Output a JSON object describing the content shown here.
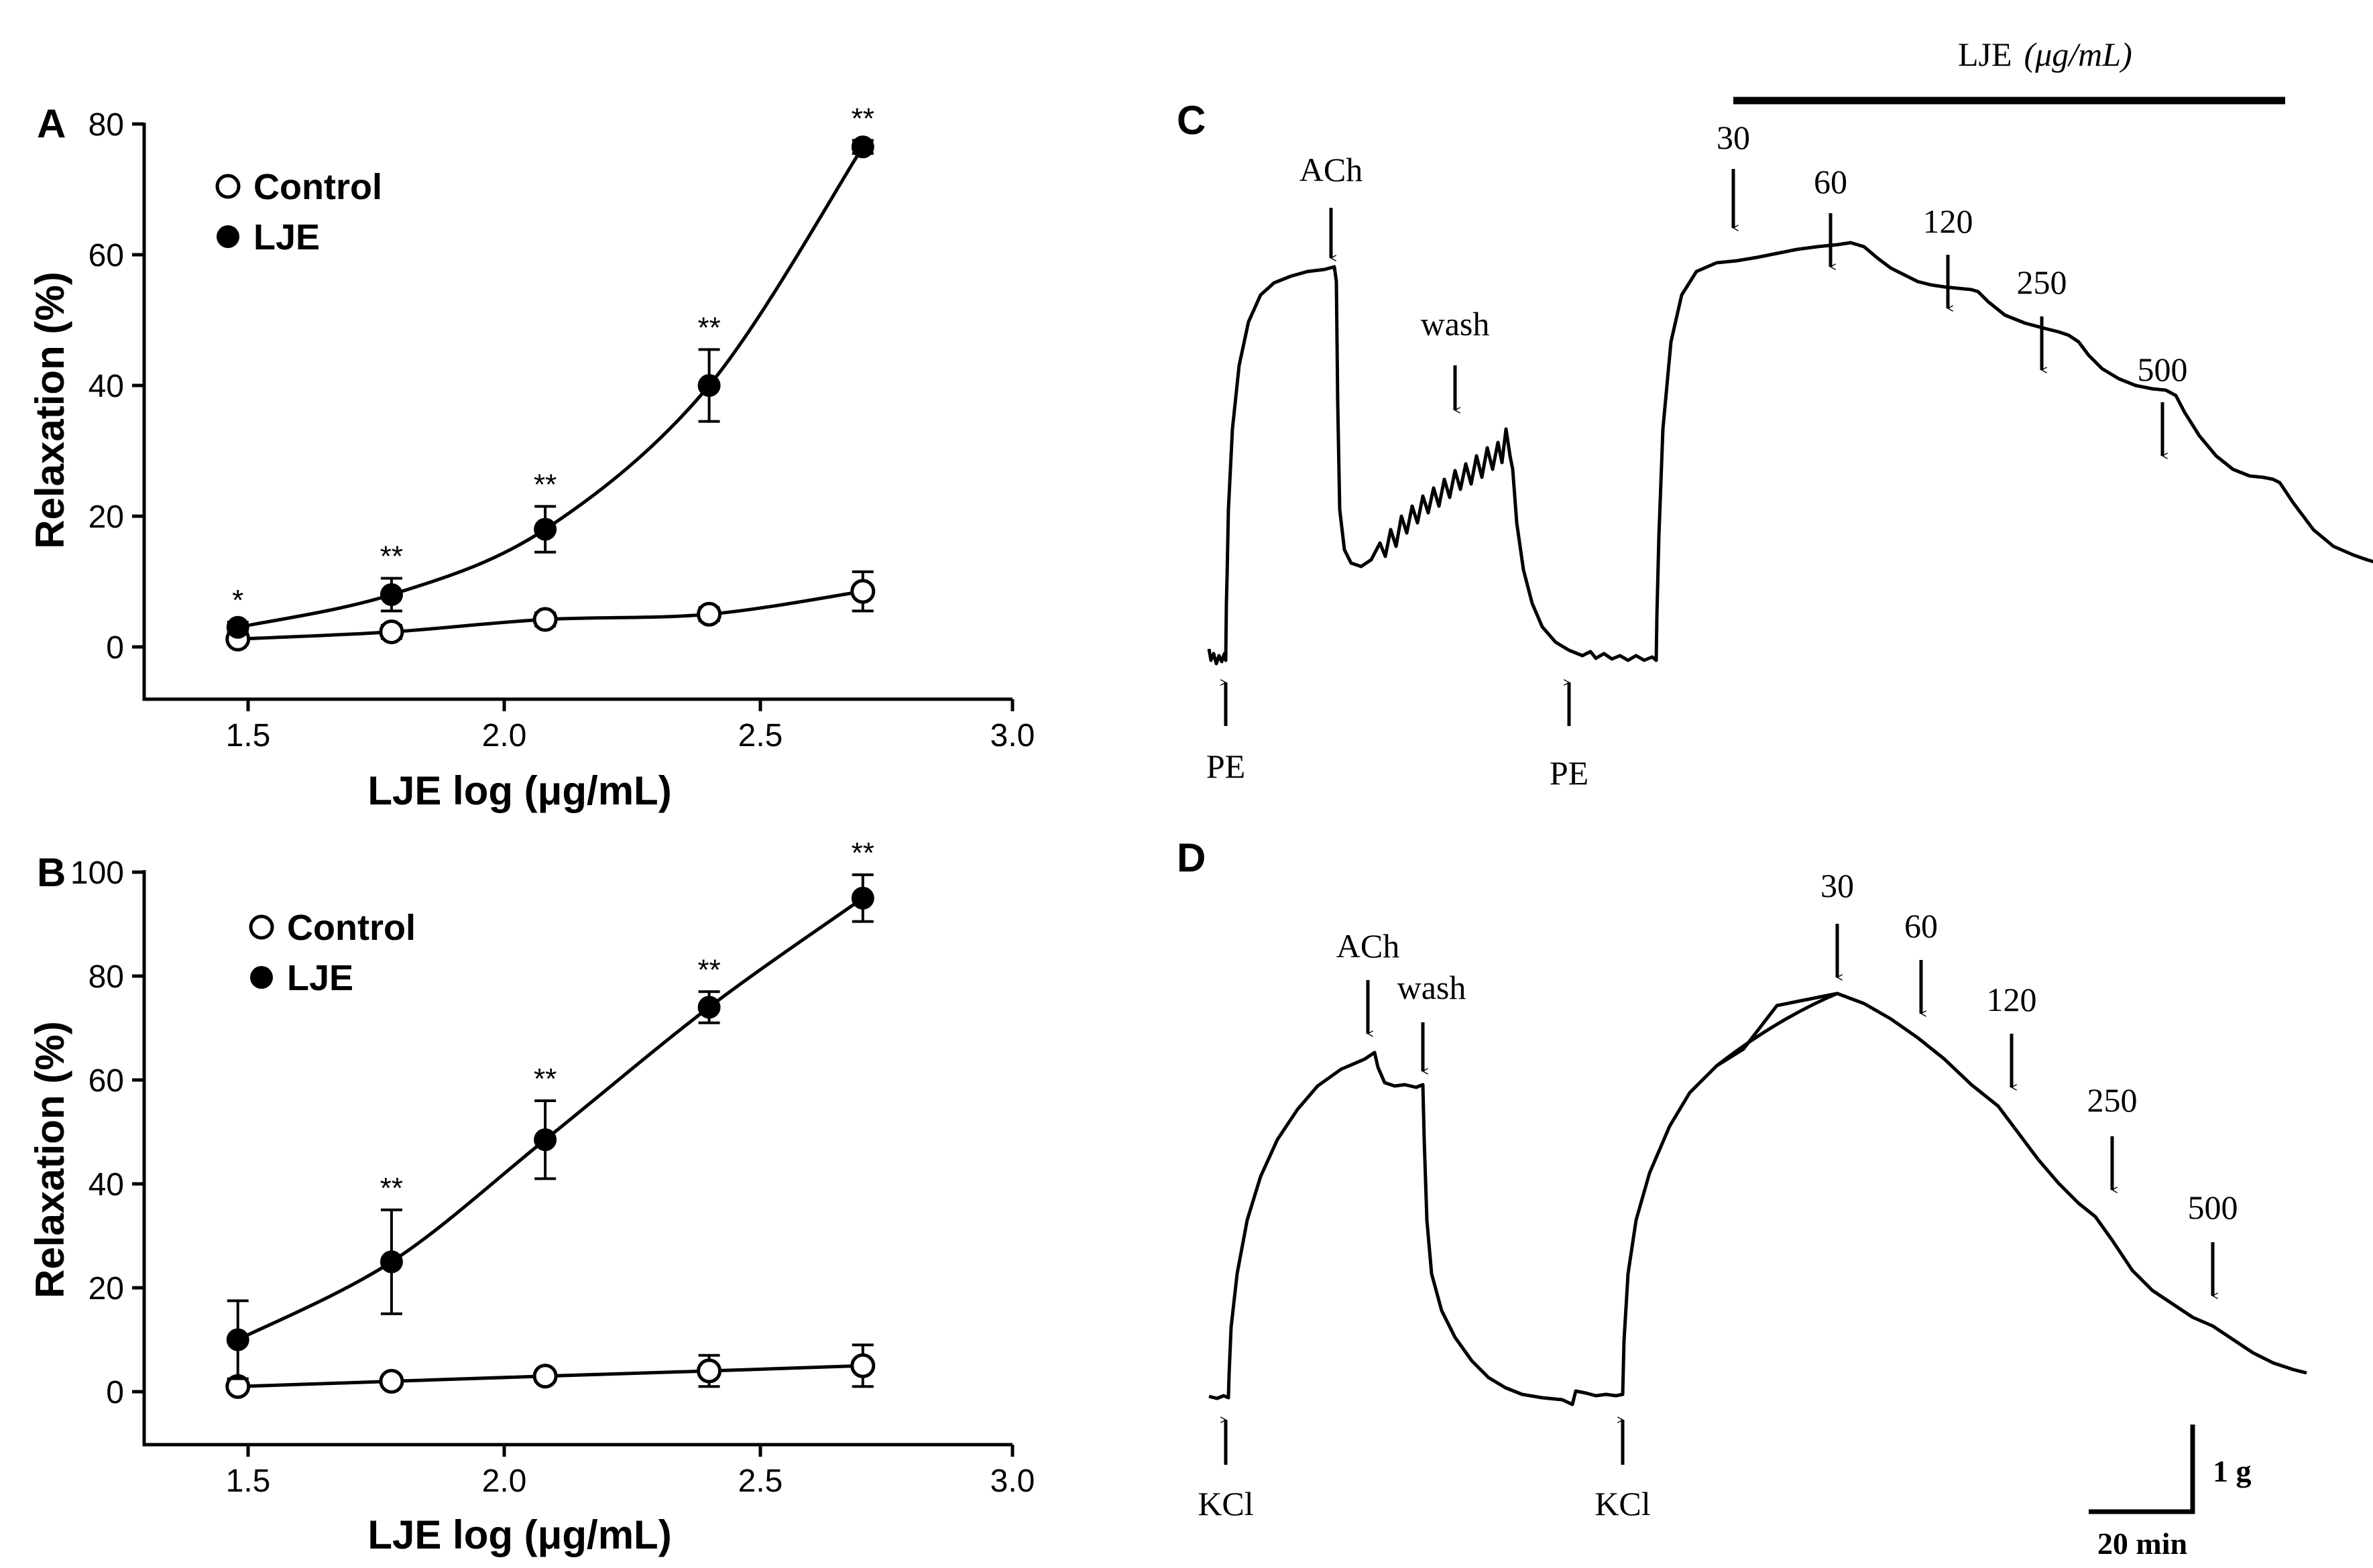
{
  "chart_data": [
    {
      "panel": "A",
      "type": "scatter",
      "xlabel": "LJE log (μg/mL)",
      "ylabel": "Relaxation (%)",
      "xlim": [
        1.3,
        3.0
      ],
      "ylim": [
        -8,
        80
      ],
      "xticks": [
        "1.5",
        "2.0",
        "2.5",
        "3.0"
      ],
      "yticks": [
        "0",
        "20",
        "40",
        "60",
        "80"
      ],
      "legend": {
        "placement": "top-left",
        "control": "Control",
        "lje": "LJE"
      },
      "series": [
        {
          "name": "Control",
          "marker": "open-circle",
          "x": [
            1.48,
            1.78,
            2.08,
            2.4,
            2.7
          ],
          "y": [
            1.2,
            2.3,
            4.2,
            5.0,
            8.5
          ],
          "err": [
            0.8,
            1.0,
            1.0,
            1.0,
            3.0
          ],
          "labels": [
            "",
            "",
            "",
            "",
            ""
          ]
        },
        {
          "name": "LJE",
          "marker": "filled-circle",
          "x": [
            1.48,
            1.78,
            2.08,
            2.4,
            2.7
          ],
          "y": [
            3.0,
            8.0,
            18.0,
            40.0,
            76.5
          ],
          "err": [
            0.8,
            2.5,
            3.5,
            5.5,
            1.0
          ],
          "labels": [
            "*",
            "**",
            "**",
            "**",
            "**"
          ]
        }
      ]
    },
    {
      "panel": "B",
      "type": "scatter",
      "xlabel": "LJE log (μg/mL)",
      "ylabel": "Relaxation (%)",
      "xlim": [
        1.3,
        3.0
      ],
      "ylim": [
        -10,
        100
      ],
      "xticks": [
        "1.5",
        "2.0",
        "2.5",
        "3.0"
      ],
      "yticks": [
        "0",
        "20",
        "40",
        "60",
        "80",
        "100"
      ],
      "legend": {
        "placement": "top-left",
        "control": "Control",
        "lje": "LJE"
      },
      "series": [
        {
          "name": "Control",
          "marker": "open-circle",
          "x": [
            1.48,
            1.78,
            2.08,
            2.4,
            2.7
          ],
          "y": [
            1.0,
            2.0,
            3.0,
            4.0,
            5.0
          ],
          "err": [
            1.0,
            1.0,
            1.0,
            3.0,
            4.0
          ],
          "labels": [
            "",
            "",
            "",
            "",
            ""
          ]
        },
        {
          "name": "LJE",
          "marker": "filled-circle",
          "x": [
            1.48,
            1.78,
            2.08,
            2.4,
            2.7
          ],
          "y": [
            10.0,
            25.0,
            48.5,
            74.0,
            95.0
          ],
          "err": [
            7.5,
            10.0,
            7.5,
            3.0,
            4.5
          ],
          "labels": [
            "",
            "**",
            "**",
            "**",
            "**"
          ]
        }
      ]
    }
  ],
  "traces": {
    "C": {
      "panel": "C",
      "bar_label": "LJE",
      "bar_unit": "(μg/mL)",
      "markers": {
        "pe1": "PE",
        "ach": "ACh",
        "wash": "wash",
        "pe2": "PE",
        "d30": "30",
        "d60": "60",
        "d120": "120",
        "d250": "250",
        "d500": "500"
      }
    },
    "D": {
      "panel": "D",
      "markers": {
        "kcl1": "KCl",
        "ach": "ACh",
        "wash": "wash",
        "kcl2": "KCl",
        "d30": "30",
        "d60": "60",
        "d120": "120",
        "d250": "250",
        "d500": "500"
      },
      "scale_force": "1 g",
      "scale_time": "20 min"
    }
  }
}
